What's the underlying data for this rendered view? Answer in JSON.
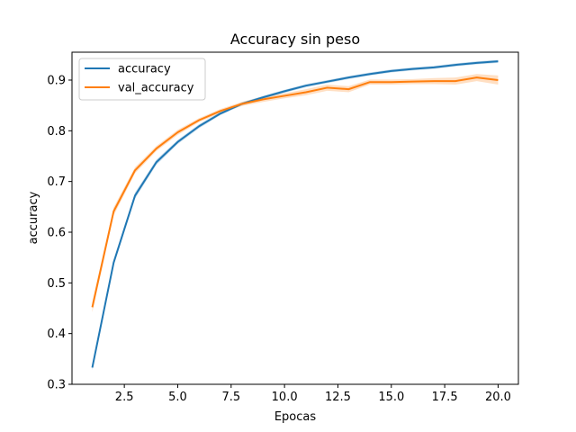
{
  "chart_data": {
    "type": "line",
    "title": "Accuracy sin peso",
    "xlabel": "Epocas",
    "ylabel": "accuracy",
    "xlim": [
      0.05,
      20.95
    ],
    "ylim": [
      0.3,
      0.955
    ],
    "xticks": [
      2.5,
      5.0,
      7.5,
      10.0,
      12.5,
      15.0,
      17.5,
      20.0
    ],
    "xtick_labels": [
      "2.5",
      "5.0",
      "7.5",
      "10.0",
      "12.5",
      "15.0",
      "17.5",
      "20.0"
    ],
    "yticks": [
      0.3,
      0.4,
      0.5,
      0.6,
      0.7,
      0.8,
      0.9
    ],
    "ytick_labels": [
      "0.3",
      "0.4",
      "0.5",
      "0.6",
      "0.7",
      "0.8",
      "0.9"
    ],
    "legend_position": "top-left",
    "grid": false,
    "x": [
      1,
      2,
      3,
      4,
      5,
      6,
      7,
      8,
      9,
      10,
      11,
      12,
      13,
      14,
      15,
      16,
      17,
      18,
      19,
      20
    ],
    "series": [
      {
        "name": "accuracy",
        "color": "#1f77b4",
        "values": [
          0.333,
          0.54,
          0.672,
          0.738,
          0.778,
          0.809,
          0.834,
          0.853,
          0.866,
          0.878,
          0.889,
          0.897,
          0.905,
          0.912,
          0.918,
          0.922,
          0.925,
          0.93,
          0.934,
          0.937
        ],
        "band": [
          0.005,
          0.006,
          0.006,
          0.005,
          0.004,
          0.004,
          0.003,
          0.003,
          0.003,
          0.003,
          0.003,
          0.003,
          0.003,
          0.003,
          0.003,
          0.003,
          0.003,
          0.003,
          0.003,
          0.003
        ]
      },
      {
        "name": "val_accuracy",
        "color": "#ff7f0e",
        "values": [
          0.452,
          0.641,
          0.722,
          0.765,
          0.797,
          0.821,
          0.839,
          0.853,
          0.862,
          0.869,
          0.876,
          0.885,
          0.882,
          0.896,
          0.896,
          0.897,
          0.898,
          0.898,
          0.905,
          0.9
        ],
        "band": [
          0.01,
          0.008,
          0.006,
          0.005,
          0.005,
          0.004,
          0.004,
          0.004,
          0.005,
          0.005,
          0.006,
          0.006,
          0.006,
          0.005,
          0.005,
          0.005,
          0.006,
          0.007,
          0.007,
          0.009
        ]
      }
    ]
  }
}
